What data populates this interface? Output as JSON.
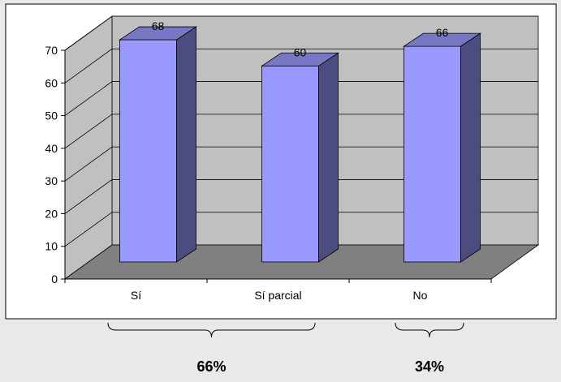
{
  "chart_data": {
    "type": "bar",
    "three_d": true,
    "categories": [
      "Sí",
      "Sí parcial",
      "No"
    ],
    "values": [
      68,
      60,
      66
    ],
    "data_labels": [
      "68",
      "60",
      "66"
    ],
    "title": "",
    "xlabel": "",
    "ylabel": "",
    "ylim": [
      0,
      70
    ],
    "yticks": [
      "0",
      "10",
      "20",
      "30",
      "40",
      "50",
      "60",
      "70"
    ],
    "grid": true,
    "legend": "none",
    "group_annotations": [
      {
        "label": "66%",
        "categories": [
          "Sí",
          "Sí parcial"
        ]
      },
      {
        "label": "34%",
        "categories": [
          "No"
        ]
      }
    ]
  },
  "colors": {
    "page_background": "#e9e9e9",
    "chart_area": "#ffffff",
    "plot_wall": "#c0c0c0",
    "plot_floor": "#808080",
    "bar_front": "#9999ff",
    "bar_side": "#4c4c7f",
    "bar_top": "#7777c4",
    "gridline": "#000000"
  }
}
